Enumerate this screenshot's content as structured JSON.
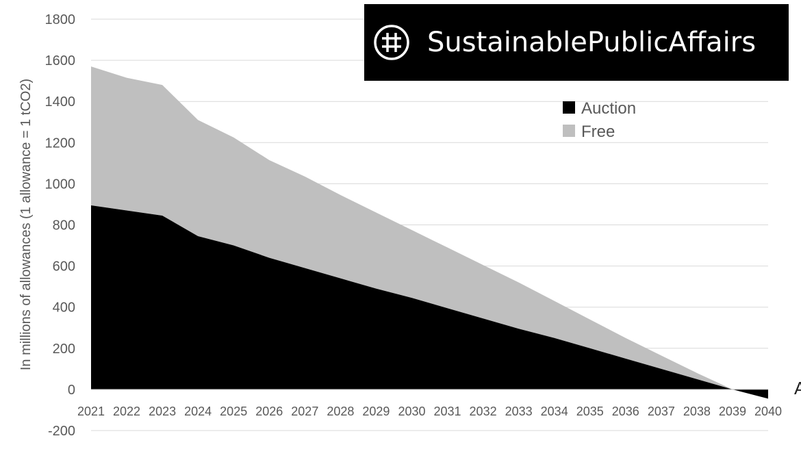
{
  "brand": {
    "text": "SustainablePublicAffairs",
    "icon": "hash-circle-icon"
  },
  "edge_glyph": "A",
  "colors": {
    "auction": "#000000",
    "free": "#bfbfbf",
    "grid": "#d9d9d9",
    "text": "#595959"
  },
  "chart_data": {
    "type": "area",
    "stacked": true,
    "title": "",
    "xlabel": "",
    "ylabel": "In millions of allowances (1 allowance = 1 tCO2)",
    "x": [
      "2021",
      "2022",
      "2023",
      "2024",
      "2025",
      "2026",
      "2027",
      "2028",
      "2029",
      "2030",
      "2031",
      "2032",
      "2033",
      "2034",
      "2035",
      "2036",
      "2037",
      "2038",
      "2039",
      "2040"
    ],
    "series": [
      {
        "name": "Auction",
        "values": [
          895,
          870,
          845,
          745,
          700,
          640,
          590,
          540,
          490,
          445,
          395,
          345,
          295,
          250,
          200,
          150,
          100,
          50,
          0,
          -45
        ]
      },
      {
        "name": "Free",
        "values": [
          675,
          645,
          635,
          565,
          525,
          475,
          445,
          405,
          370,
          330,
          295,
          260,
          225,
          180,
          140,
          100,
          65,
          30,
          0,
          0
        ]
      }
    ],
    "ylim": [
      -200,
      1800
    ],
    "yticks": [
      1800,
      1600,
      1400,
      1200,
      1000,
      800,
      600,
      400,
      200,
      0,
      -200
    ],
    "grid": true,
    "legend": "top-right"
  }
}
